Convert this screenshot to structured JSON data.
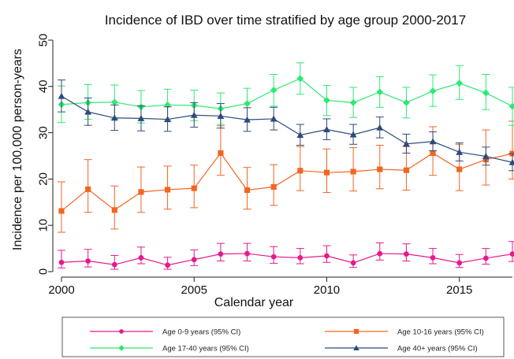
{
  "chart_data": {
    "type": "line",
    "title": "Incidence of IBD over time stratified by age group 2000-2017",
    "xlabel": "Calendar year",
    "ylabel": "Incidence per 100,000 person-years",
    "xlim": [
      2000,
      2017
    ],
    "ylim": [
      0,
      50
    ],
    "xticks": [
      2000,
      2005,
      2010,
      2015
    ],
    "yticks": [
      0,
      10,
      20,
      30,
      40,
      50
    ],
    "grid": false,
    "legend_position": "bottom",
    "x": [
      2000,
      2001,
      2002,
      2003,
      2004,
      2005,
      2006,
      2007,
      2008,
      2009,
      2010,
      2011,
      2012,
      2013,
      2014,
      2015,
      2016,
      2017
    ],
    "series": [
      {
        "name": "Age 0-9 years (95% CI)",
        "color": "#e6198c",
        "marker": "circle",
        "values": [
          2.0,
          2.3,
          1.5,
          3.0,
          1.4,
          2.6,
          3.8,
          3.9,
          3.2,
          3.0,
          3.4,
          1.9,
          3.9,
          3.8,
          3.0,
          1.9,
          2.9,
          3.8
        ],
        "lower": [
          0.8,
          1.0,
          0.5,
          1.7,
          0.5,
          1.3,
          2.3,
          2.3,
          1.8,
          1.7,
          2.0,
          0.9,
          2.5,
          2.3,
          1.7,
          0.9,
          1.6,
          2.2
        ],
        "upper": [
          4.6,
          4.8,
          3.5,
          5.3,
          3.1,
          4.7,
          6.1,
          6.1,
          5.4,
          5.0,
          5.6,
          3.6,
          6.2,
          6.0,
          5.0,
          3.7,
          5.0,
          6.5
        ]
      },
      {
        "name": "Age 10-16 years (95% CI)",
        "color": "#f26522",
        "marker": "square",
        "values": [
          13.1,
          17.8,
          13.3,
          17.2,
          17.7,
          18.0,
          25.6,
          17.6,
          18.3,
          21.8,
          21.4,
          21.6,
          22.1,
          21.9,
          25.6,
          22.1,
          24.2,
          25.5
        ],
        "lower": [
          8.5,
          12.8,
          9.2,
          12.8,
          13.5,
          13.8,
          20.8,
          13.5,
          14.3,
          17.5,
          17.1,
          17.4,
          17.9,
          17.6,
          20.8,
          17.5,
          18.7,
          20.0
        ],
        "upper": [
          19.4,
          24.2,
          18.5,
          22.6,
          22.8,
          23.0,
          31.5,
          22.5,
          23.1,
          27.0,
          26.5,
          26.8,
          27.3,
          27.0,
          31.3,
          27.5,
          30.6,
          32.5
        ]
      },
      {
        "name": "Age 17-40 years (95% CI)",
        "color": "#2ee872",
        "marker": "diamond",
        "values": [
          36.1,
          36.5,
          36.6,
          35.6,
          36.0,
          35.9,
          35.2,
          36.3,
          39.2,
          41.7,
          37.0,
          36.5,
          38.8,
          36.5,
          39.0,
          40.7,
          38.6,
          35.7
        ],
        "lower": [
          32.2,
          32.9,
          33.0,
          32.1,
          32.6,
          32.6,
          31.8,
          32.9,
          35.7,
          38.3,
          33.7,
          33.3,
          35.5,
          33.2,
          35.7,
          37.2,
          35.0,
          31.6
        ],
        "upper": [
          40.1,
          40.4,
          40.3,
          39.1,
          39.4,
          39.2,
          38.6,
          39.6,
          42.6,
          45.1,
          40.2,
          39.8,
          42.1,
          39.8,
          42.5,
          44.5,
          42.6,
          39.8
        ]
      },
      {
        "name": "Age 40+ years (95% CI)",
        "color": "#2e4a7a",
        "marker": "triangle",
        "values": [
          37.9,
          34.5,
          33.2,
          33.1,
          32.9,
          33.8,
          33.6,
          32.8,
          33.0,
          29.5,
          30.7,
          29.6,
          31.1,
          27.6,
          28.1,
          25.8,
          24.9,
          23.6
        ],
        "lower": [
          34.5,
          31.6,
          30.5,
          30.4,
          30.3,
          31.2,
          31.0,
          30.3,
          30.6,
          27.3,
          28.5,
          27.5,
          28.9,
          25.6,
          26.1,
          23.9,
          23.0,
          21.8
        ],
        "upper": [
          41.4,
          37.5,
          36.0,
          35.8,
          35.6,
          36.5,
          36.3,
          35.4,
          35.5,
          31.8,
          33.0,
          31.8,
          33.4,
          29.7,
          30.2,
          27.8,
          26.9,
          25.5
        ]
      }
    ]
  }
}
